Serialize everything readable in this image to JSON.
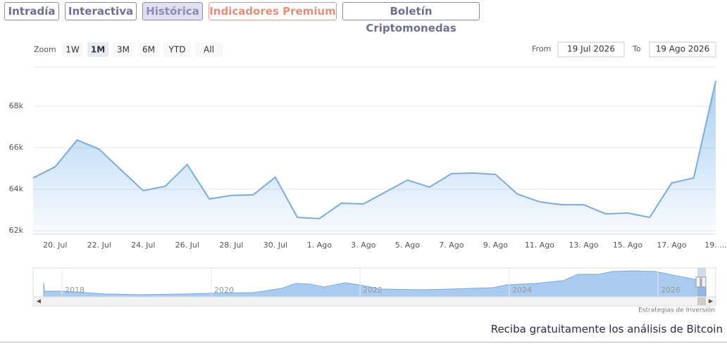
{
  "tabs": [
    "Intradía",
    "Interactiva",
    "Histórica",
    "Indicadores Premium",
    "Boletín Criptomonedas"
  ],
  "zoom": {
    "label": "Zoom",
    "buttons": [
      "1W",
      "1M",
      "3M",
      "6M",
      "YTD",
      "All"
    ]
  },
  "range": {
    "from_label": "From",
    "from": "19 Jul 2026",
    "to_label": "To",
    "to": "19 Ago 2026"
  },
  "chart_data": {
    "type": "area",
    "categories": [
      null,
      "20. Jul",
      null,
      "22. Jul",
      null,
      "24. Jul",
      null,
      "26. Jul",
      null,
      "28. Jul",
      null,
      "30. Jul",
      null,
      "1. Ago",
      null,
      "3. Ago",
      null,
      "5. Ago",
      null,
      "7. Ago",
      null,
      "9. Ago",
      null,
      "11. Ago",
      null,
      "13. Ago",
      null,
      "15. Ago",
      null,
      "17. Ago",
      null,
      "19. ..."
    ],
    "series": [
      {
        "color": "#7cabdc",
        "values": [
          64540,
          65080,
          66370,
          65930,
          64920,
          63930,
          64140,
          65190,
          63530,
          63700,
          63730,
          64580,
          62640,
          62580,
          63320,
          63290,
          63860,
          64440,
          64100,
          64750,
          64780,
          64710,
          63760,
          63390,
          63250,
          63250,
          62810,
          62850,
          62640,
          64300,
          64540,
          69220
        ]
      }
    ],
    "ylim": [
      61830,
      69900
    ],
    "yticks": [
      {
        "value": 62000,
        "label": "62k"
      },
      {
        "value": 64000,
        "label": "64k"
      },
      {
        "value": 66000,
        "label": "66k"
      },
      {
        "value": 68000,
        "label": "68k"
      }
    ],
    "grid": true
  },
  "navigator_years": [
    "2018",
    "2020",
    "2022",
    "2024",
    "2026"
  ],
  "credits": "Estrategias de Inversión",
  "footer": "Reciba gratuitamente los análisis de Bitcoin"
}
